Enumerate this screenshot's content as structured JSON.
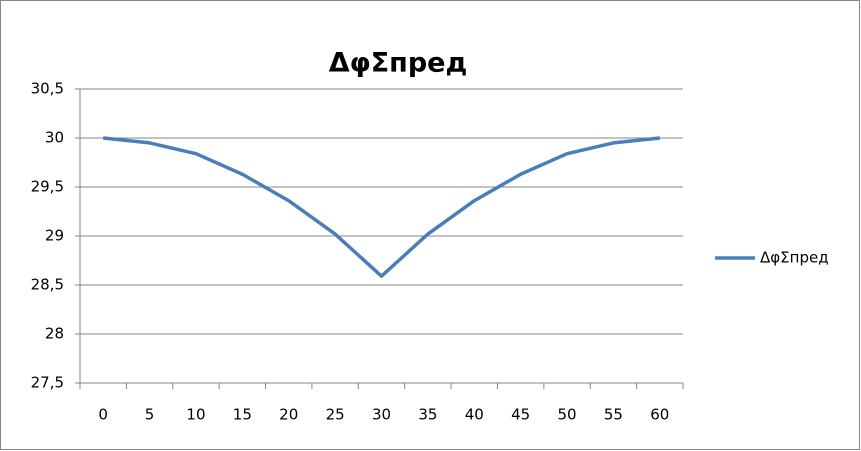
{
  "chart_data": {
    "type": "line",
    "title": "ΔφΣпред",
    "categories": [
      "0",
      "5",
      "10",
      "15",
      "20",
      "25",
      "30",
      "35",
      "40",
      "45",
      "50",
      "55",
      "60"
    ],
    "series": [
      {
        "name": "ΔφΣпред",
        "color": "#4a7ebb",
        "values": [
          30,
          29.95,
          29.84,
          29.63,
          29.36,
          29.02,
          28.59,
          29.02,
          29.36,
          29.63,
          29.84,
          29.95,
          30
        ]
      }
    ],
    "ylim": [
      27.5,
      30.5
    ],
    "yticks": [
      {
        "value": 27.5,
        "label": "27,5"
      },
      28,
      {
        "value": 28.5,
        "label": "28,5"
      },
      29,
      {
        "value": 29.5,
        "label": "29,5"
      },
      30,
      {
        "value": 30.5,
        "label": "30,5"
      }
    ],
    "grid": true,
    "legend": "right"
  }
}
